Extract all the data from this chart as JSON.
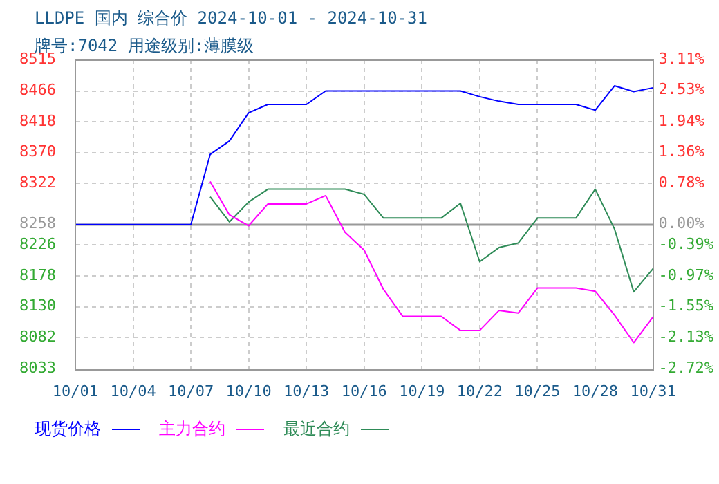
{
  "chart_data": {
    "type": "line",
    "title": "LLDPE 国内 综合价 2024-10-01 - 2024-10-31",
    "subtitle": "牌号:7042 用途级别:薄膜级",
    "categories": [
      "10/01",
      null,
      null,
      "10/04",
      null,
      null,
      "10/07",
      null,
      null,
      "10/10",
      null,
      null,
      "10/13",
      null,
      null,
      "10/16",
      null,
      null,
      "10/19",
      null,
      null,
      "10/22",
      null,
      null,
      "10/25",
      null,
      null,
      "10/28",
      null,
      null,
      "10/31"
    ],
    "series": [
      {
        "name": "现货价格",
        "color": "#0000ff",
        "values": [
          8258,
          8258,
          8258,
          8258,
          8258,
          8258,
          8258,
          8367,
          8388,
          8432,
          8445,
          8445,
          8445,
          8466,
          8466,
          8466,
          8466,
          8466,
          8466,
          8466,
          8466,
          8457,
          8450,
          8445,
          8445,
          8445,
          8445,
          8436,
          8474,
          8465,
          8471
        ]
      },
      {
        "name": "主力合约",
        "color": "#ff00ff",
        "values": [
          null,
          null,
          null,
          null,
          null,
          null,
          null,
          8325,
          8273,
          8256,
          8290,
          8290,
          8290,
          8303,
          8246,
          8218,
          8157,
          8115,
          8115,
          8115,
          8093,
          8093,
          8124,
          8120,
          8159,
          8159,
          8159,
          8154,
          8117,
          8074,
          8114
        ]
      },
      {
        "name": "最近合约",
        "color": "#2e8b57",
        "values": [
          null,
          null,
          null,
          null,
          null,
          null,
          null,
          8301,
          8262,
          8293,
          8313,
          8313,
          8313,
          8313,
          8313,
          8305,
          8268,
          8268,
          8268,
          8268,
          8291,
          8200,
          8222,
          8229,
          8268,
          8268,
          8268,
          8313,
          8251,
          8153,
          8189
        ]
      }
    ],
    "ylim": [
      8033,
      8515
    ],
    "yticks": [
      8033,
      8082,
      8130,
      8178,
      8226,
      8258,
      8322,
      8370,
      8418,
      8466,
      8515
    ],
    "y2lim": [
      -2.72,
      3.11
    ],
    "y2ticks": [
      {
        "value": -2.72,
        "label": "-2.72%"
      },
      {
        "value": -2.13,
        "label": "-2.13%"
      },
      {
        "value": -1.55,
        "label": "-1.55%"
      },
      {
        "value": -0.97,
        "label": "-0.97%"
      },
      {
        "value": -0.39,
        "label": "-0.39%"
      },
      {
        "value": 0,
        "label": "0.00%"
      },
      {
        "value": 0.78,
        "label": "0.78%"
      },
      {
        "value": 1.36,
        "label": "1.36%"
      },
      {
        "value": 1.94,
        "label": "1.94%"
      },
      {
        "value": 2.53,
        "label": "2.53%"
      },
      {
        "value": 3.11,
        "label": "3.11%"
      }
    ],
    "ref_lines": [
      {
        "axis": "y",
        "value": 8258,
        "color": "#999999"
      }
    ],
    "grid": true,
    "legend": "bottom",
    "marker": "none",
    "line_style": "solid"
  }
}
